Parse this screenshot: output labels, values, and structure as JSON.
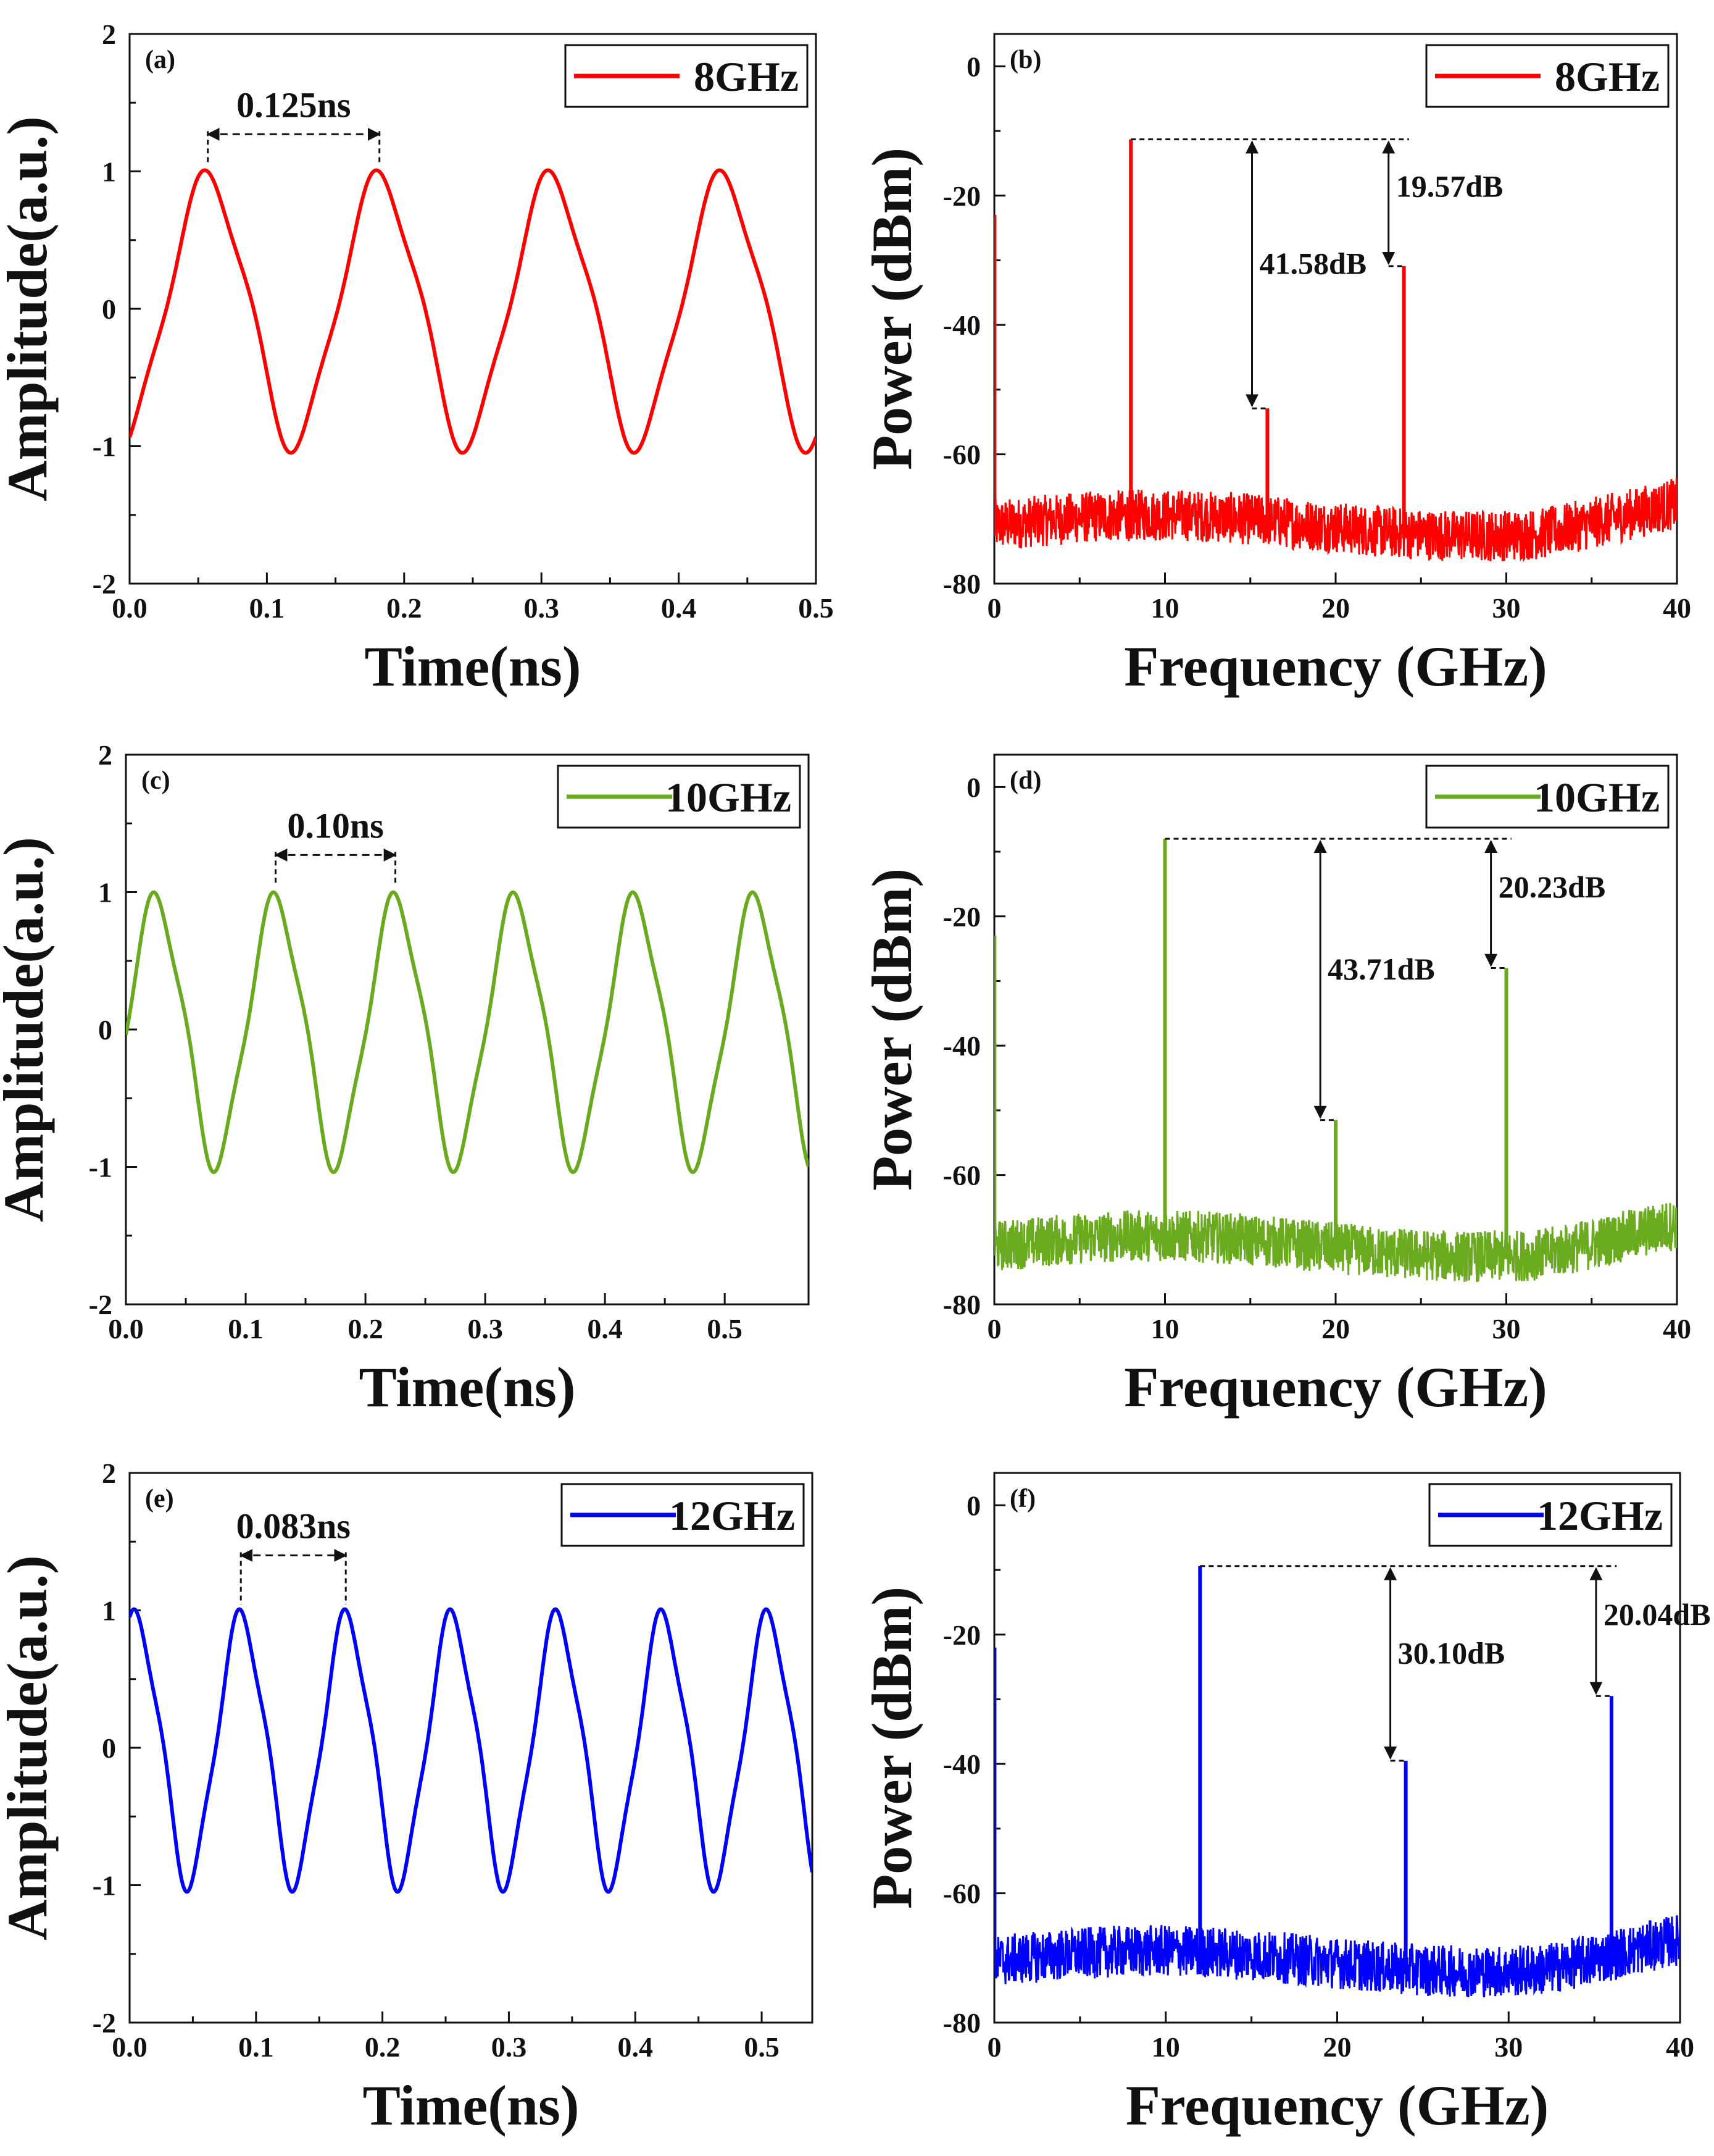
{
  "chart_data": [
    {
      "panel": "(a)",
      "type": "line",
      "xlabel": "Time(ns)",
      "ylabel": "Amplitude(a.u.)",
      "xlim": [
        0,
        0.5
      ],
      "ylim": [
        -2,
        2
      ],
      "xticks": [
        "0.0",
        "0.1",
        "0.2",
        "0.3",
        "0.4",
        "0.5"
      ],
      "yticks": [
        "-2",
        "-1",
        "0",
        "1",
        "2"
      ],
      "legend": "8GHz",
      "legend_position": "top-right",
      "color": "#ff0000",
      "wave": {
        "freq_ghz": 8,
        "peak_times": [
          0.057,
          0.182,
          0.307,
          0.432
        ],
        "amplitude": 1.02,
        "start": -0.97
      },
      "annotations": [
        {
          "text": "0.125ns",
          "kind": "interval",
          "x1": 0.057,
          "x2": 0.182,
          "y": 1.27
        }
      ]
    },
    {
      "panel": "(b)",
      "type": "line",
      "xlabel": "Frequency (GHz)",
      "ylabel": "Power (dBm)",
      "xlim": [
        0,
        40
      ],
      "ylim": [
        -80,
        5
      ],
      "xticks": [
        "0",
        "10",
        "20",
        "30",
        "40"
      ],
      "yticks": [
        "-80",
        "-60",
        "-40",
        "-20",
        "0"
      ],
      "legend": "8GHz",
      "legend_position": "top-right",
      "color": "#ff0000",
      "noise_floor": -71,
      "peaks": [
        {
          "x": 0.1,
          "y": -23
        },
        {
          "x": 8,
          "y": -11.3
        },
        {
          "x": 16,
          "y": -52.9
        },
        {
          "x": 24,
          "y": -30.9
        }
      ],
      "annotations": [
        {
          "text": "41.58dB",
          "kind": "level",
          "x": 15.1,
          "y1": -11.3,
          "y2": -52.9
        },
        {
          "text": "19.57dB",
          "kind": "level",
          "x": 23.1,
          "y1": -11.3,
          "y2": -30.9
        }
      ]
    },
    {
      "panel": "(c)",
      "type": "line",
      "xlabel": "Time(ns)",
      "ylabel": "Amplitude(a.u.)",
      "xlim": [
        0,
        0.57
      ],
      "ylim": [
        -2,
        2
      ],
      "xticks": [
        "0.0",
        "0.1",
        "0.2",
        "0.3",
        "0.4",
        "0.5"
      ],
      "yticks": [
        "-2",
        "-1",
        "0",
        "1",
        "2"
      ],
      "legend": "10GHz",
      "legend_position": "top-right",
      "color": "#6aaa1e",
      "wave": {
        "freq_ghz": 10,
        "peak_times": [
          0.025,
          0.125,
          0.225,
          0.325,
          0.425,
          0.525
        ],
        "amplitude": 1.01,
        "start": -0.25
      },
      "annotations": [
        {
          "text": "0.10ns",
          "kind": "interval",
          "x1": 0.125,
          "x2": 0.225,
          "y": 1.27
        }
      ]
    },
    {
      "panel": "(d)",
      "type": "line",
      "xlabel": "Frequency (GHz)",
      "ylabel": "Power (dBm)",
      "xlim": [
        0,
        40
      ],
      "ylim": [
        -80,
        5
      ],
      "xticks": [
        "0",
        "10",
        "20",
        "30",
        "40"
      ],
      "yticks": [
        "-80",
        "-60",
        "-40",
        "-20",
        "0"
      ],
      "legend": "10GHz",
      "legend_position": "top-right",
      "color": "#6aaa1e",
      "noise_floor": -71,
      "peaks": [
        {
          "x": 0.1,
          "y": -23
        },
        {
          "x": 10,
          "y": -8
        },
        {
          "x": 20,
          "y": -51.5
        },
        {
          "x": 30,
          "y": -28
        }
      ],
      "annotations": [
        {
          "text": "43.71dB",
          "kind": "level",
          "x": 19.1,
          "y1": -8,
          "y2": -51.5
        },
        {
          "text": "20.23dB",
          "kind": "level",
          "x": 29.1,
          "y1": -8,
          "y2": -28
        }
      ]
    },
    {
      "panel": "(e)",
      "type": "line",
      "xlabel": "Time(ns)",
      "ylabel": "Amplitude(a.u.)",
      "xlim": [
        0,
        0.54
      ],
      "ylim": [
        -2,
        2
      ],
      "xticks": [
        "0.0",
        "0.1",
        "0.2",
        "0.3",
        "0.4",
        "0.5"
      ],
      "yticks": [
        "-2",
        "-1",
        "0",
        "1",
        "2"
      ],
      "legend": "12GHz",
      "legend_position": "top-right",
      "color": "#0000ff",
      "wave": {
        "freq_ghz": 12,
        "peak_times": [
          0.005,
          0.088,
          0.171,
          0.254,
          0.338,
          0.421,
          0.504
        ],
        "amplitude": 1.02,
        "start": 0.98
      },
      "annotations": [
        {
          "text": "0.083ns",
          "kind": "interval",
          "x1": 0.088,
          "x2": 0.171,
          "y": 1.4
        }
      ]
    },
    {
      "panel": "(f)",
      "type": "line",
      "xlabel": "Frequency (GHz)",
      "ylabel": "Power (dBm)",
      "xlim": [
        0,
        40
      ],
      "ylim": [
        -80,
        5
      ],
      "xticks": [
        "0",
        "10",
        "20",
        "30",
        "40"
      ],
      "yticks": [
        "-80",
        "-60",
        "-40",
        "-20",
        "0"
      ],
      "legend": "12GHz",
      "legend_position": "top-right",
      "color": "#0000ff",
      "noise_floor": -70.5,
      "peaks": [
        {
          "x": 0.1,
          "y": -22
        },
        {
          "x": 12,
          "y": -9.4
        },
        {
          "x": 24,
          "y": -39.5
        },
        {
          "x": 36,
          "y": -29.5
        }
      ],
      "annotations": [
        {
          "text": "30.10dB",
          "kind": "level",
          "x": 23.1,
          "y1": -9.4,
          "y2": -39.5
        },
        {
          "text": "20.04dB",
          "kind": "level",
          "x": 35.1,
          "y1": -9.4,
          "y2": -29.5
        }
      ]
    }
  ]
}
